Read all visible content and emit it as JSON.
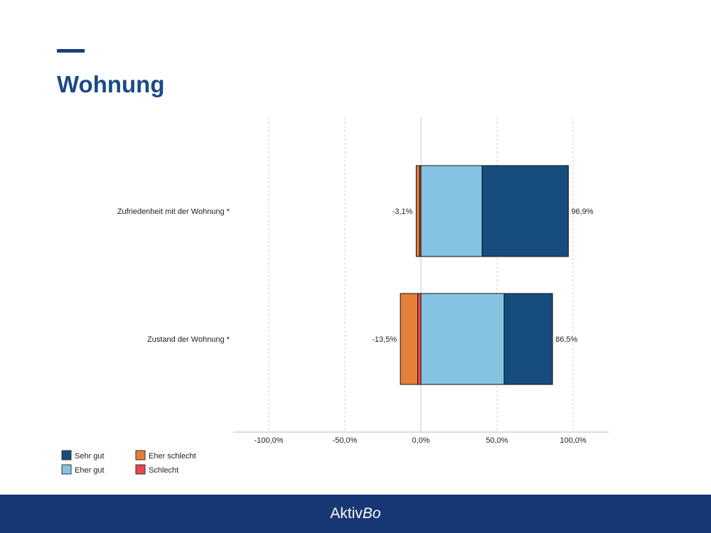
{
  "header": {
    "title": "Wohnung"
  },
  "footer": {
    "logo_main": "Aktiv",
    "logo_italic": "Bo"
  },
  "chart_data": {
    "type": "bar",
    "orientation": "horizontal-diverging-stacked",
    "categories": [
      "Zufriedenheit mit der Wohnung *",
      "Zustand der Wohnung *"
    ],
    "series": [
      {
        "name": "Schlecht",
        "color": "#e8474f",
        "values": [
          -0.9,
          -2.1
        ]
      },
      {
        "name": "Eher schlecht",
        "color": "#e57e37",
        "values": [
          -2.2,
          -11.4
        ]
      },
      {
        "name": "Eher gut",
        "color": "#85c3e3",
        "values": [
          40.2,
          54.7
        ]
      },
      {
        "name": "Sehr gut",
        "color": "#174d7e",
        "values": [
          56.7,
          31.8
        ]
      }
    ],
    "neg_labels": [
      "-3,1%",
      "-13,5%"
    ],
    "pos_labels": [
      "96,9%",
      "86,5%"
    ],
    "xticks": [
      -100,
      -50,
      0,
      50,
      100
    ],
    "xtick_labels": [
      "-100,0%",
      "-50,0%",
      "0,0%",
      "50,0%",
      "100,0%"
    ],
    "xlim": [
      -100,
      100
    ],
    "grid": true,
    "legend": [
      {
        "name": "Sehr gut",
        "color": "#174d7e"
      },
      {
        "name": "Eher gut",
        "color": "#85c3e3"
      },
      {
        "name": "Eher schlecht",
        "color": "#e57e37"
      },
      {
        "name": "Schlecht",
        "color": "#e8474f"
      }
    ],
    "legend_position": "bottom-left"
  }
}
